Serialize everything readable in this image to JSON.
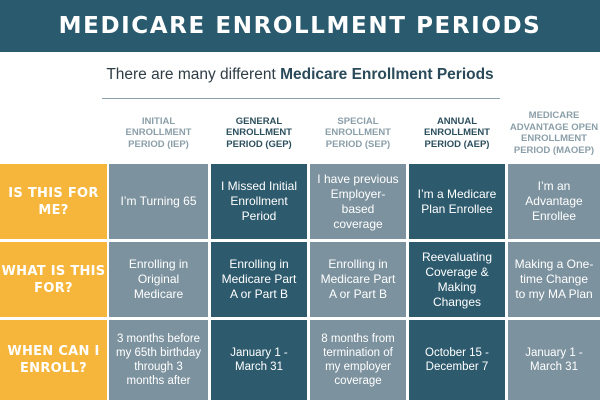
{
  "title": "MEDICARE ENROLLMENT PERIODS",
  "subtitle": {
    "prefix": "There are many different ",
    "emphasis": "Medicare Enrollment Periods"
  },
  "columns": [
    {
      "label": "INITIAL ENROLLMENT PERIOD (IEP)",
      "style": "light"
    },
    {
      "label": "GENERAL ENROLLMENT PERIOD (GEP)",
      "style": "dark"
    },
    {
      "label": "SPECIAL ENROLLMENT PERIOD (SEP)",
      "style": "light"
    },
    {
      "label": "ANNUAL ENROLLMENT PERIOD (AEP)",
      "style": "dark"
    },
    {
      "label": "MEDICARE ADVANTAGE OPEN ENROLLMENT PERIOD (MAOEP)",
      "style": "light"
    }
  ],
  "rows": [
    {
      "label": "IS THIS FOR ME?",
      "cells": [
        "I’m Turning 65",
        "I Missed Initial Enrollment Period",
        "I have previous Employer-based coverage",
        "I’m a Medicare Plan Enrollee",
        "I’m an Advantage Enrollee"
      ]
    },
    {
      "label": "WHAT IS THIS FOR?",
      "cells": [
        "Enrolling in Original Medicare",
        "Enrolling in Medicare Part A or Part B",
        "Enrolling in Medicare Part A or Part B",
        "Reevaluating Coverage & Making Changes",
        "Making a One-time Change to my MA Plan"
      ]
    },
    {
      "label": "WHEN CAN I ENROLL?",
      "cells": [
        "3 months before my 65th birthday through 3 months after",
        "January 1 - March 31",
        "8 months from termination of my employer coverage",
        "October 15 - December 7",
        "January 1 - March 31"
      ]
    }
  ]
}
